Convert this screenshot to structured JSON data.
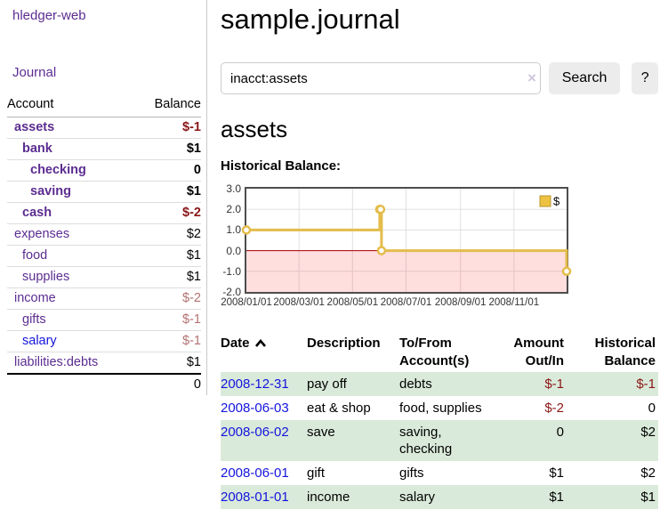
{
  "app": {
    "title": "hledger-web"
  },
  "icons": {
    "clear_search": "×",
    "sort_ascending": "chevron-up",
    "legend_swatch": "gold-square"
  },
  "colors": {
    "link_purple": "#5c2d91",
    "link_blue": "#1414dd",
    "negative_strong": "#8b1717",
    "negative_soft": "#b37272",
    "row_stripe_green": "#daeada",
    "button_gray": "#ececec",
    "chart_line_gold": "#e4bc4b",
    "chart_legend_fill": "#edc240",
    "chart_legend_border": "#b89530",
    "chart_negative_fill": "rgba(255,0,0,0.13)",
    "chart_zero_line": "#a00000",
    "chart_grid": "#e0e0e0",
    "chart_border": "#4d4d4d"
  },
  "sidebar": {
    "journal_link": "Journal",
    "table": {
      "headers": {
        "account": "Account",
        "balance": "Balance"
      },
      "accounts": [
        {
          "name": "assets",
          "depth": 0,
          "bold": true,
          "link_color": "purple",
          "balance": "$-1",
          "balance_style": "neg-strong"
        },
        {
          "name": "bank",
          "depth": 1,
          "bold": true,
          "link_color": "purple",
          "balance": "$1",
          "balance_style": "normal"
        },
        {
          "name": "checking",
          "depth": 2,
          "bold": true,
          "link_color": "purple",
          "balance": "0",
          "balance_style": "normal"
        },
        {
          "name": "saving",
          "depth": 2,
          "bold": true,
          "link_color": "purple",
          "balance": "$1",
          "balance_style": "normal"
        },
        {
          "name": "cash",
          "depth": 1,
          "bold": true,
          "link_color": "purple",
          "balance": "$-2",
          "balance_style": "neg-strong"
        },
        {
          "name": "expenses",
          "depth": 0,
          "bold": false,
          "link_color": "purple",
          "balance": "$2",
          "balance_style": "normal"
        },
        {
          "name": "food",
          "depth": 1,
          "bold": false,
          "link_color": "purple",
          "balance": "$1",
          "balance_style": "normal"
        },
        {
          "name": "supplies",
          "depth": 1,
          "bold": false,
          "link_color": "purple",
          "balance": "$1",
          "balance_style": "normal"
        },
        {
          "name": "income",
          "depth": 0,
          "bold": false,
          "link_color": "purple",
          "balance": "$-2",
          "balance_style": "neg-soft"
        },
        {
          "name": "gifts",
          "depth": 1,
          "bold": false,
          "link_color": "purple",
          "balance": "$-1",
          "balance_style": "neg-soft"
        },
        {
          "name": "salary",
          "depth": 1,
          "bold": false,
          "link_color": "blue",
          "balance": "$-1",
          "balance_style": "neg-soft"
        },
        {
          "name": "liabilities:debts",
          "depth": 0,
          "bold": false,
          "link_color": "purple",
          "balance": "$1",
          "balance_style": "normal"
        }
      ],
      "total": "0"
    }
  },
  "main": {
    "title": "sample.journal",
    "search": {
      "value": "inacct:assets",
      "button_label": "Search",
      "help_label": "?"
    },
    "account_heading": "assets",
    "chart_heading": "Historical Balance:"
  },
  "chart_data": {
    "type": "line",
    "title": "Historical Balance",
    "step": true,
    "series": [
      {
        "name": "$",
        "points": [
          [
            "2008-01-01",
            1
          ],
          [
            "2008-06-01",
            2
          ],
          [
            "2008-06-02",
            2
          ],
          [
            "2008-06-03",
            0
          ],
          [
            "2008-12-31",
            -1
          ]
        ]
      }
    ],
    "xlim": [
      "2008-01-01",
      "2008-12-31"
    ],
    "ylim": [
      -2,
      3
    ],
    "y_ticks": [
      "3.0",
      "2.0",
      "1.0",
      "0.0",
      "-1.0",
      "-2.0"
    ],
    "x_ticks": [
      "2008/01/01",
      "2008/03/01",
      "2008/05/01",
      "2008/07/01",
      "2008/09/01",
      "2008/11/01"
    ],
    "grid": true,
    "legend_position": "top-right",
    "negative_region_shaded": true
  },
  "register": {
    "headers": [
      {
        "line1": "Date",
        "line2": "",
        "align": "left"
      },
      {
        "line1": "Description",
        "line2": "",
        "align": "left"
      },
      {
        "line1": "To/From",
        "line2": "Account(s)",
        "align": "left"
      },
      {
        "line1": "Amount",
        "line2": "Out/In",
        "align": "right"
      },
      {
        "line1": "Historical",
        "line2": "Balance",
        "align": "right"
      }
    ],
    "rows": [
      {
        "date": "2008-12-31",
        "description": "pay off",
        "accounts": "debts",
        "amount": "$-1",
        "amount_neg": true,
        "balance": "$-1",
        "balance_neg": true
      },
      {
        "date": "2008-06-03",
        "description": "eat & shop",
        "accounts": "food, supplies",
        "amount": "$-2",
        "amount_neg": true,
        "balance": "0",
        "balance_neg": false
      },
      {
        "date": "2008-06-02",
        "description": "save",
        "accounts": "saving, checking",
        "amount": "0",
        "amount_neg": false,
        "balance": "$2",
        "balance_neg": false
      },
      {
        "date": "2008-06-01",
        "description": "gift",
        "accounts": "gifts",
        "amount": "$1",
        "amount_neg": false,
        "balance": "$2",
        "balance_neg": false
      },
      {
        "date": "2008-01-01",
        "description": "income",
        "accounts": "salary",
        "amount": "$1",
        "amount_neg": false,
        "balance": "$1",
        "balance_neg": false
      }
    ]
  }
}
